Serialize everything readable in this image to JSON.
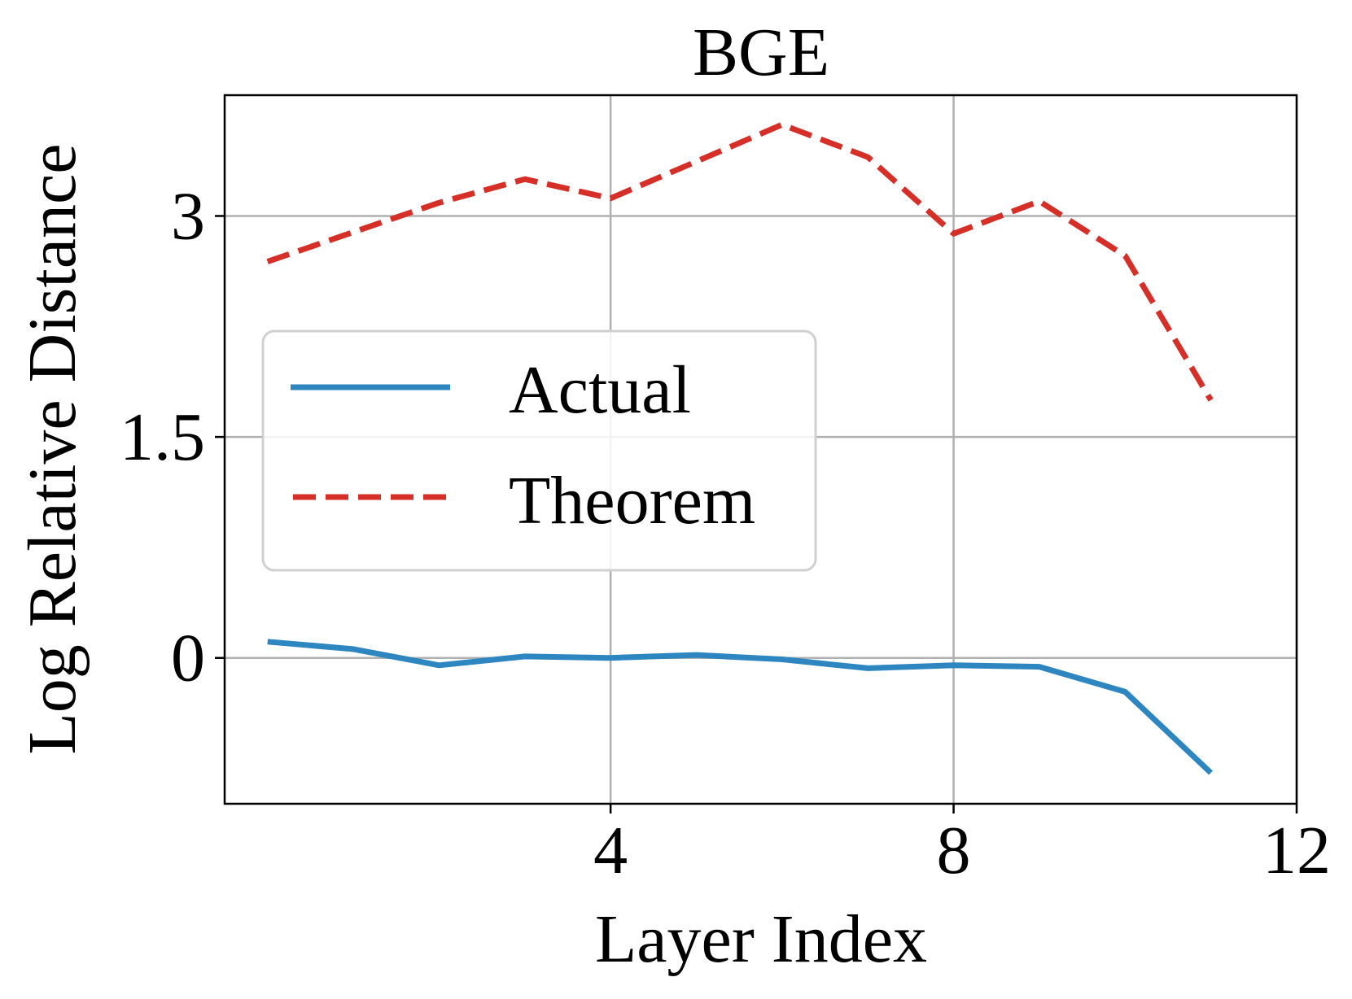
{
  "chart_data": {
    "type": "line",
    "title": "BGE",
    "xlabel": "Layer Index",
    "ylabel": "Log Relative Distance",
    "xlim": [
      -0.5,
      12
    ],
    "ylim": [
      -0.99,
      3.82
    ],
    "xticks": [
      4,
      8,
      12
    ],
    "xtick_labels": [
      "4",
      "8",
      "12"
    ],
    "yticks": [
      0,
      1.5,
      3
    ],
    "ytick_labels": [
      "0",
      "1.5",
      "3"
    ],
    "grid": true,
    "legend_position": "center-left",
    "x": [
      0,
      1,
      2,
      3,
      4,
      5,
      6,
      7,
      8,
      9,
      10,
      11
    ],
    "series": [
      {
        "name": "Actual",
        "color": "#2e86c1",
        "style": "solid",
        "values": [
          0.11,
          0.06,
          -0.05,
          0.01,
          0.0,
          0.02,
          -0.01,
          -0.07,
          -0.05,
          -0.06,
          -0.23,
          -0.78
        ]
      },
      {
        "name": "Theorem",
        "color": "#d62f27",
        "style": "dashed",
        "values": [
          2.69,
          2.89,
          3.09,
          3.25,
          3.12,
          3.37,
          3.62,
          3.4,
          2.88,
          3.1,
          2.73,
          1.75
        ]
      }
    ]
  }
}
